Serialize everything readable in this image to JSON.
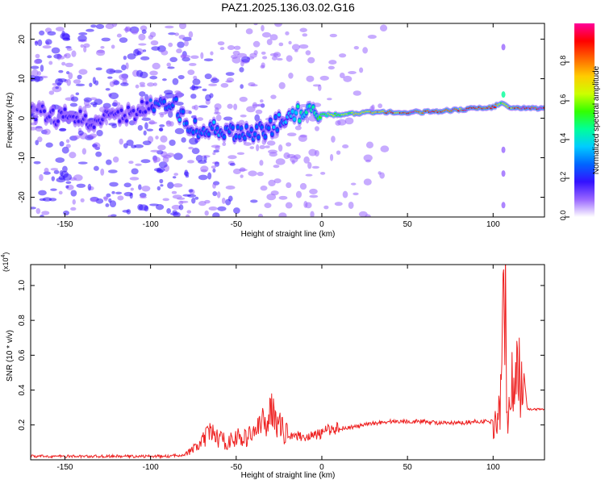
{
  "title": "PAZ1.2025.136.03.02.G16",
  "chart_data": [
    {
      "type": "heatmap",
      "xlabel": "Height of straight line (km)",
      "ylabel": "Frequency (Hz)",
      "xlim": [
        -170,
        130
      ],
      "ylim": [
        -25,
        24
      ],
      "xticks": [
        -150,
        -100,
        -50,
        0,
        50,
        100
      ],
      "yticks": [
        -20,
        -10,
        0,
        10,
        20
      ],
      "colorbar": {
        "label": "Normalized spectral amplitude",
        "range": [
          0,
          1
        ],
        "ticks": [
          0.0,
          0.2,
          0.4,
          0.6,
          0.8
        ],
        "tick_labels": [
          "0.0",
          "0.2",
          "0.4",
          "0.6",
          "0.8"
        ],
        "colormap": [
          "#ffffff",
          "#9966ff",
          "#3311ff",
          "#0066ff",
          "#00ccff",
          "#00ff99",
          "#33ff00",
          "#ccff00",
          "#ffcc00",
          "#ff6600",
          "#ff0000",
          "#ff0099"
        ]
      },
      "ridge": [
        {
          "x": -165,
          "f": 1.5,
          "a": 0.15
        },
        {
          "x": -155,
          "f": 0.0,
          "a": 0.2
        },
        {
          "x": -145,
          "f": 1.0,
          "a": 0.15
        },
        {
          "x": -135,
          "f": -1.5,
          "a": 0.2
        },
        {
          "x": -125,
          "f": 2.0,
          "a": 0.18
        },
        {
          "x": -115,
          "f": 0.5,
          "a": 0.2
        },
        {
          "x": -105,
          "f": 2.5,
          "a": 0.2
        },
        {
          "x": -95,
          "f": 3.0,
          "a": 0.25
        },
        {
          "x": -85,
          "f": 3.0,
          "a": 0.3
        },
        {
          "x": -78,
          "f": -2.0,
          "a": 0.3
        },
        {
          "x": -70,
          "f": -3.0,
          "a": 0.28
        },
        {
          "x": -60,
          "f": -3.0,
          "a": 0.3
        },
        {
          "x": -50,
          "f": -4.0,
          "a": 0.3
        },
        {
          "x": -40,
          "f": -4.0,
          "a": 0.28
        },
        {
          "x": -30,
          "f": -2.5,
          "a": 0.3
        },
        {
          "x": -20,
          "f": 0.5,
          "a": 0.35
        },
        {
          "x": -10,
          "f": 1.5,
          "a": 0.45
        },
        {
          "x": 0,
          "f": 1.0,
          "a": 0.55
        },
        {
          "x": 10,
          "f": 0.8,
          "a": 0.6
        },
        {
          "x": 20,
          "f": 1.3,
          "a": 0.7
        },
        {
          "x": 30,
          "f": 1.5,
          "a": 0.75
        },
        {
          "x": 40,
          "f": 1.5,
          "a": 0.85
        },
        {
          "x": 50,
          "f": 1.5,
          "a": 0.9
        },
        {
          "x": 60,
          "f": 1.6,
          "a": 0.9
        },
        {
          "x": 70,
          "f": 1.8,
          "a": 0.85
        },
        {
          "x": 80,
          "f": 2.2,
          "a": 0.88
        },
        {
          "x": 90,
          "f": 2.5,
          "a": 0.9
        },
        {
          "x": 100,
          "f": 2.8,
          "a": 0.92
        },
        {
          "x": 105,
          "f": 4.0,
          "a": 0.6
        },
        {
          "x": 110,
          "f": 2.5,
          "a": 0.85
        },
        {
          "x": 120,
          "f": 2.5,
          "a": 0.95
        },
        {
          "x": 128,
          "f": 2.5,
          "a": 1.0
        }
      ]
    },
    {
      "type": "line",
      "xlabel": "Height of straight line (km)",
      "ylabel": "SNR (10 * v/v)",
      "yscale_note": "(x10",
      "yscale_exp": "4",
      "xlim": [
        -170,
        130
      ],
      "ylim": [
        0,
        1.12
      ],
      "xticks": [
        -150,
        -100,
        -50,
        0,
        50,
        100
      ],
      "yticks": [
        0.2,
        0.4,
        0.6,
        0.8,
        1.0
      ],
      "ytick_labels": [
        "0.2",
        "0.4",
        "0.6",
        "0.8",
        "1.0"
      ],
      "line_color": "#ee2222",
      "x": [
        -170,
        -150,
        -130,
        -110,
        -90,
        -80,
        -75,
        -70,
        -65,
        -60,
        -55,
        -50,
        -45,
        -40,
        -35,
        -30,
        -28,
        -26,
        -24,
        -22,
        -20,
        -15,
        -10,
        -5,
        0,
        3,
        6,
        10,
        20,
        30,
        40,
        50,
        60,
        70,
        80,
        90,
        100,
        103,
        105,
        106,
        107,
        108,
        109,
        110,
        112,
        114,
        116,
        118,
        120,
        125,
        130
      ],
      "y": [
        0.02,
        0.02,
        0.02,
        0.02,
        0.02,
        0.03,
        0.06,
        0.1,
        0.16,
        0.12,
        0.1,
        0.13,
        0.12,
        0.16,
        0.2,
        0.26,
        0.32,
        0.22,
        0.18,
        0.16,
        0.15,
        0.14,
        0.13,
        0.14,
        0.15,
        0.17,
        0.18,
        0.18,
        0.19,
        0.21,
        0.22,
        0.22,
        0.22,
        0.21,
        0.21,
        0.22,
        0.22,
        0.25,
        0.4,
        0.85,
        1.12,
        0.45,
        0.2,
        0.55,
        0.3,
        0.6,
        0.45,
        0.5,
        0.29,
        0.29,
        0.29
      ]
    }
  ]
}
